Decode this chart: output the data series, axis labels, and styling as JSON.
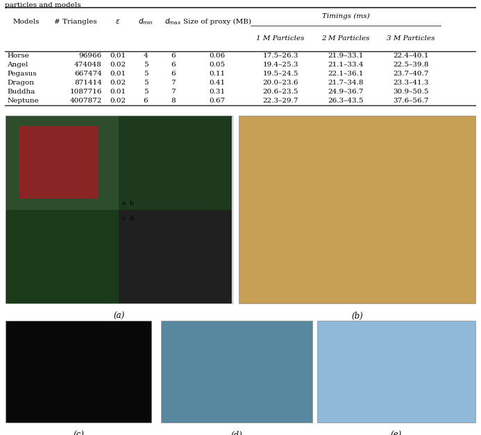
{
  "title_text": "particles and models",
  "rows": [
    [
      "Horse",
      "96966",
      "0.01",
      "4",
      "6",
      "0.06",
      "17.5–26.3",
      "21.9–33.1",
      "22.4–40.1"
    ],
    [
      "Angel",
      "474048",
      "0.02",
      "5",
      "6",
      "0.05",
      "19.4–25.3",
      "21.1–33.4",
      "22.5–39.8"
    ],
    [
      "Pegasus",
      "667474",
      "0.01",
      "5",
      "6",
      "0.11",
      "19.5–24.5",
      "22.1–36.1",
      "23.7–40.7"
    ],
    [
      "Dragon",
      "871414",
      "0.02",
      "5",
      "7",
      "0.41",
      "20.0–23.6",
      "21.7–34.8",
      "23.3–41.3"
    ],
    [
      "Buddha",
      "1087716",
      "0.01",
      "5",
      "7",
      "0.31",
      "20.6–23.5",
      "24.9–36.7",
      "30.9–50.5"
    ],
    [
      "Neptune",
      "4007872",
      "0.02",
      "6",
      "8",
      "0.67",
      "22.3–29.7",
      "26.3–43.5",
      "37.6–56.7"
    ]
  ],
  "table_line_color": "#222222",
  "caption_a": "(a)",
  "caption_b": "(b)",
  "caption_c": "(c)",
  "caption_d": "(d)",
  "caption_e": "(e)",
  "img_a_colors": [
    "#3a5a3a",
    "#8B2020",
    "#1a3a1a",
    "#1a3a1a",
    "#252525"
  ],
  "img_b_color": "#C8A055",
  "img_c_color": "#080808",
  "img_d_color": "#5888a0",
  "img_e_color": "#90b8d8"
}
